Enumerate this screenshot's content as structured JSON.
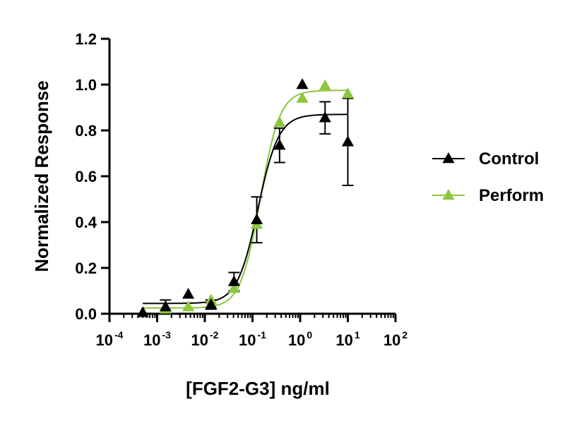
{
  "chart_data": {
    "type": "scatter",
    "xlabel": "[FGF2-G3] ng/ml",
    "ylabel": "Normalized Response",
    "x_scale": "log",
    "xlim": [
      0.0001,
      100
    ],
    "ylim": [
      0,
      1.2
    ],
    "x_ticks": [
      {
        "base": "10",
        "exp": "-4",
        "value": 0.0001
      },
      {
        "base": "10",
        "exp": "-3",
        "value": 0.001
      },
      {
        "base": "10",
        "exp": "-2",
        "value": 0.01
      },
      {
        "base": "10",
        "exp": "-1",
        "value": 0.1
      },
      {
        "base": "10",
        "exp": "0",
        "value": 1
      },
      {
        "base": "10",
        "exp": "1",
        "value": 10
      },
      {
        "base": "10",
        "exp": "2",
        "value": 100
      }
    ],
    "y_ticks": [
      "0.0",
      "0.2",
      "0.4",
      "0.6",
      "0.8",
      "1.0",
      "1.2"
    ],
    "grid": false,
    "legend_position": "right",
    "series": [
      {
        "name": "Control",
        "color": "#000000",
        "marker": "triangle",
        "points": [
          {
            "x": 0.0005,
            "y": 0.005,
            "err": 0
          },
          {
            "x": 0.0015,
            "y": 0.03,
            "err": 0.03
          },
          {
            "x": 0.0045,
            "y": 0.085,
            "err": 0
          },
          {
            "x": 0.0135,
            "y": 0.04,
            "err": 0.02
          },
          {
            "x": 0.041,
            "y": 0.14,
            "err": 0.04
          },
          {
            "x": 0.123,
            "y": 0.41,
            "err": 0.1
          },
          {
            "x": 0.37,
            "y": 0.735,
            "err": 0.075
          },
          {
            "x": 1.11,
            "y": 1.0,
            "err": 0
          },
          {
            "x": 3.33,
            "y": 0.855,
            "err": 0.07
          },
          {
            "x": 10,
            "y": 0.75,
            "err": 0.19
          }
        ],
        "fit": {
          "bottom": 0.045,
          "top": 0.87,
          "ec50": 0.13,
          "hill": 2.0
        }
      },
      {
        "name": "Perform",
        "color": "#8dc63f",
        "marker": "triangle",
        "points": [
          {
            "x": 0.0005,
            "y": 0.005,
            "err": 0
          },
          {
            "x": 0.0015,
            "y": 0.02,
            "err": 0
          },
          {
            "x": 0.0045,
            "y": 0.03,
            "err": 0
          },
          {
            "x": 0.0135,
            "y": 0.06,
            "err": 0
          },
          {
            "x": 0.041,
            "y": 0.11,
            "err": 0
          },
          {
            "x": 0.123,
            "y": 0.39,
            "err": 0
          },
          {
            "x": 0.37,
            "y": 0.835,
            "err": 0
          },
          {
            "x": 1.11,
            "y": 0.94,
            "err": 0
          },
          {
            "x": 3.33,
            "y": 0.995,
            "err": 0
          },
          {
            "x": 10,
            "y": 0.96,
            "err": 0
          }
        ],
        "fit": {
          "bottom": 0.025,
          "top": 0.975,
          "ec50": 0.145,
          "hill": 2.1
        }
      }
    ]
  }
}
